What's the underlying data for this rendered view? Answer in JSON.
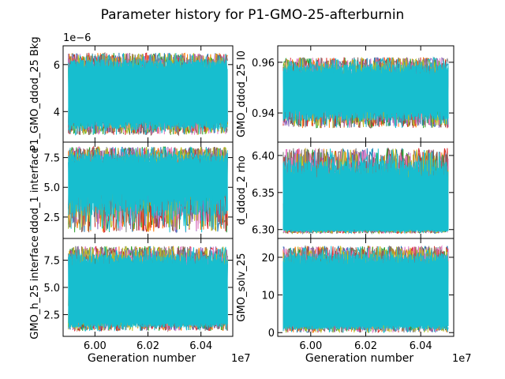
{
  "figure": {
    "title": "Parameter history for P1-GMO-25-afterburnin",
    "palette": [
      "#1f77b4",
      "#ff7f0e",
      "#2ca02c",
      "#d62728",
      "#9467bd",
      "#8c564b",
      "#e377c2",
      "#7f7f7f",
      "#bcbd22",
      "#17becf"
    ]
  },
  "chart_data": [
    {
      "type": "line",
      "panel": "top-left",
      "ylabel": "P1_GMO_ddod_25 Bkg",
      "xlabel": "",
      "offset_label": "1e−6",
      "xlim": [
        59880000,
        60520000
      ],
      "ylim": [
        2.7,
        6.8
      ],
      "x_ticks": [
        60000000,
        60200000,
        60400000
      ],
      "x_tick_labels": [
        "",
        "",
        ""
      ],
      "y_ticks": [
        4,
        6
      ],
      "y_tick_labels": [
        "4",
        "6"
      ],
      "x_range": [
        59900000,
        60500000
      ],
      "series_count": 10,
      "band": {
        "bottom": [
          3.0,
          3.6
        ],
        "top": [
          5.8,
          6.5
        ]
      }
    },
    {
      "type": "line",
      "panel": "top-right",
      "ylabel": "GMO_ddod_25 I0",
      "xlabel": "",
      "offset_label": "",
      "xlim": [
        59880000,
        60520000
      ],
      "ylim": [
        0.9285,
        0.9665
      ],
      "x_ticks": [
        60000000,
        60200000,
        60400000
      ],
      "x_tick_labels": [
        "",
        "",
        ""
      ],
      "y_ticks": [
        0.94,
        0.96
      ],
      "y_tick_labels": [
        "0.94",
        "0.96"
      ],
      "x_range": [
        59900000,
        60500000
      ],
      "series_count": 10,
      "band": {
        "bottom": [
          0.934,
          0.941
        ],
        "top": [
          0.955,
          0.962
        ]
      }
    },
    {
      "type": "line",
      "panel": "middle-left",
      "ylabel": "ddod_1 interface",
      "xlabel": "",
      "offset_label": "",
      "xlim": [
        59880000,
        60520000
      ],
      "ylim": [
        0.7,
        8.8
      ],
      "x_ticks": [
        60000000,
        60200000,
        60400000
      ],
      "x_tick_labels": [
        "",
        "",
        ""
      ],
      "y_ticks": [
        2.5,
        5.0,
        7.5
      ],
      "y_tick_labels": [
        "2.5",
        "5.0",
        "7.5"
      ],
      "x_range": [
        59900000,
        60500000
      ],
      "series_count": 10,
      "band": {
        "bottom": [
          1.2,
          4.5
        ],
        "top": [
          7.0,
          8.4
        ]
      }
    },
    {
      "type": "line",
      "panel": "middle-right",
      "ylabel": "d_ddod_2 rho",
      "xlabel": "",
      "offset_label": "",
      "xlim": [
        59880000,
        60520000
      ],
      "ylim": [
        6.288,
        6.418
      ],
      "x_ticks": [
        60000000,
        60200000,
        60400000
      ],
      "x_tick_labels": [
        "",
        "",
        ""
      ],
      "y_ticks": [
        6.3,
        6.35,
        6.4
      ],
      "y_tick_labels": [
        "6.30",
        "6.35",
        "6.40"
      ],
      "x_range": [
        59900000,
        60500000
      ],
      "series_count": 10,
      "band": {
        "bottom": [
          6.295,
          6.3
        ],
        "top": [
          6.37,
          6.41
        ]
      }
    },
    {
      "type": "line",
      "panel": "bottom-left",
      "ylabel": "GMO_h_25 interface",
      "xlabel": "Generation number",
      "offset_label": "1e7",
      "xlim": [
        59880000,
        60520000
      ],
      "ylim": [
        0.5,
        9.5
      ],
      "x_ticks": [
        60000000,
        60200000,
        60400000
      ],
      "x_tick_labels": [
        "6.00",
        "6.02",
        "6.04"
      ],
      "y_ticks": [
        2.5,
        5.0,
        7.5
      ],
      "y_tick_labels": [
        "2.5",
        "5.0",
        "7.5"
      ],
      "x_range": [
        59900000,
        60500000
      ],
      "series_count": 10,
      "band": {
        "bottom": [
          1.0,
          1.8
        ],
        "top": [
          7.0,
          8.8
        ]
      }
    },
    {
      "type": "line",
      "panel": "bottom-right",
      "ylabel": "GMO_solv_25",
      "xlabel": "Generation number",
      "offset_label": "1e7",
      "xlim": [
        59880000,
        60520000
      ],
      "ylim": [
        -1.0,
        25.0
      ],
      "x_ticks": [
        60000000,
        60200000,
        60400000
      ],
      "x_tick_labels": [
        "6.00",
        "6.02",
        "6.04"
      ],
      "y_ticks": [
        0,
        10,
        20
      ],
      "y_tick_labels": [
        "0",
        "10",
        "20"
      ],
      "x_range": [
        59900000,
        60500000
      ],
      "series_count": 10,
      "band": {
        "bottom": [
          0.0,
          2.0
        ],
        "top": [
          18.0,
          23.0
        ]
      }
    }
  ]
}
